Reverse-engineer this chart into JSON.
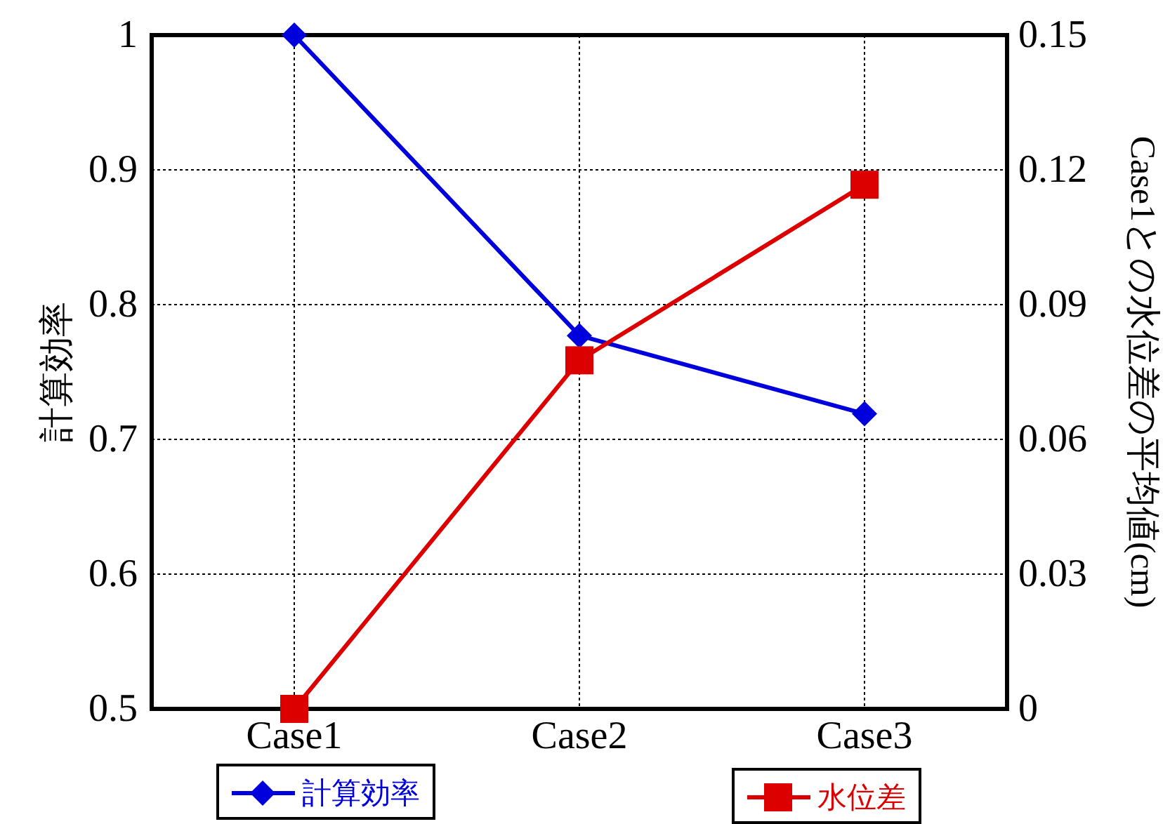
{
  "chart_data": {
    "type": "line",
    "ylabel": "計算効率",
    "y2label": "Case1との水位差の平均値(cm)",
    "categories": [
      "Case1",
      "Case2",
      "Case3"
    ],
    "series": [
      {
        "name": "計算効率",
        "color": "#0000dd",
        "marker": "diamond",
        "values": [
          1.0,
          0.777,
          0.719
        ]
      },
      {
        "name": "水位差",
        "color": "#dd0000",
        "marker": "square",
        "axis": "y2",
        "values": [
          0,
          0.0776,
          0.1167
        ]
      }
    ],
    "ylim": [
      0.5,
      1
    ],
    "yticks": [
      0.5,
      0.6,
      0.7,
      0.8,
      0.9,
      1
    ],
    "y2lim": [
      0,
      0.15
    ],
    "y2ticks": [
      0,
      0.03,
      0.06,
      0.09,
      0.12,
      0.15
    ],
    "grid": true,
    "legend": "bottom",
    "line_style": "solid"
  }
}
